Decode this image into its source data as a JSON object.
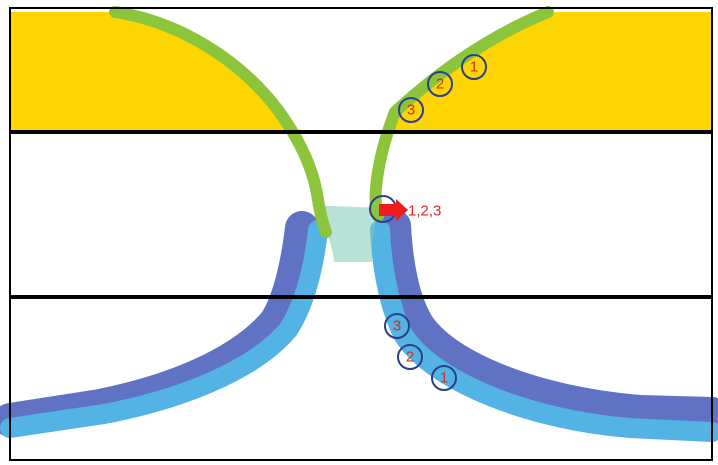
{
  "colors": {
    "background": "#ffffff",
    "frame": "#000000",
    "separator_line": "#000000",
    "upper_fill": "#ffd500",
    "upper_band": "#8cc43c",
    "lower_band_outer": "#5f72c4",
    "lower_band_inner": "#52b3e4",
    "marker_ring": "#2b3f8c",
    "marker_text_upper": "#d92a1e",
    "marker_text_lower": "#d92a1e",
    "arrow": "#ee1c1c"
  },
  "upper_markers": [
    "1",
    "2",
    "3"
  ],
  "lower_markers": [
    "3",
    "2",
    "1"
  ],
  "tip_arrow": {
    "label": "1,2,3"
  }
}
